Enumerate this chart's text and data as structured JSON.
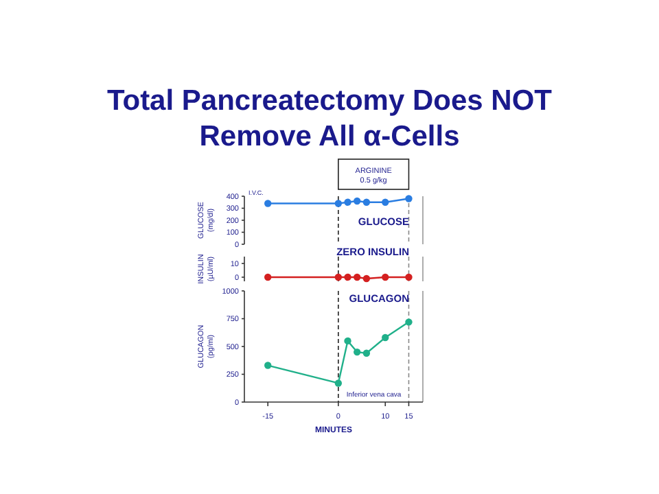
{
  "chart_data": [
    {
      "type": "line",
      "title": "Total Pancreatectomy Does NOT Remove All α-Cells",
      "ylabel": "GLUCOSE (mg/dl)",
      "x": [
        -15,
        0,
        2,
        4,
        6,
        10,
        15
      ],
      "xlim": [
        -20,
        18
      ],
      "ylim": [
        0,
        400
      ],
      "yticks": [
        0,
        100,
        200,
        300,
        400
      ],
      "tick_labels": "y",
      "marker": "circle",
      "line_style": "solid",
      "series": [
        {
          "color": "#2a7de1",
          "values": [
            340,
            340,
            350,
            360,
            350,
            350,
            380
          ]
        }
      ],
      "ref_lines": [
        {
          "axis": "x",
          "value": 0,
          "color": "#222222",
          "line_style": "dashed"
        },
        {
          "axis": "x",
          "value": 15,
          "color": "#888888",
          "line_style": "dashed"
        }
      ],
      "annotations": [
        "GLUCOSE",
        "I.V.C.",
        "ARGININE 0.5 g/kg"
      ]
    },
    {
      "type": "line",
      "ylabel": "INSULIN (µU/ml)",
      "x": [
        -15,
        0,
        2,
        4,
        6,
        10,
        15
      ],
      "xlim": [
        -20,
        18
      ],
      "ylim": [
        -3,
        15
      ],
      "yticks": [
        0,
        10
      ],
      "tick_labels": "y",
      "marker": "circle",
      "line_style": "solid",
      "series": [
        {
          "color": "#d42020",
          "values": [
            0,
            0,
            0,
            0,
            -1,
            0,
            0
          ]
        }
      ],
      "ref_lines": [
        {
          "axis": "x",
          "value": 0,
          "color": "#222222",
          "line_style": "dashed"
        },
        {
          "axis": "x",
          "value": 15,
          "color": "#888888",
          "line_style": "dashed"
        }
      ],
      "annotations": [
        "ZERO INSULIN"
      ]
    },
    {
      "type": "line",
      "ylabel": "GLUCAGON (pg/ml)",
      "xlabel": "MINUTES",
      "x": [
        -15,
        0,
        2,
        4,
        6,
        10,
        15
      ],
      "xlim": [
        -20,
        18
      ],
      "xticks": [
        -15,
        0,
        10,
        15
      ],
      "ylim": [
        0,
        1000
      ],
      "yticks": [
        0,
        250,
        500,
        750,
        1000
      ],
      "marker": "circle",
      "line_style": "solid",
      "series": [
        {
          "color": "#20b08a",
          "values": [
            330,
            170,
            550,
            450,
            440,
            580,
            720
          ]
        }
      ],
      "ref_lines": [
        {
          "axis": "x",
          "value": 0,
          "color": "#222222",
          "line_style": "dashed"
        },
        {
          "axis": "x",
          "value": 15,
          "color": "#888888",
          "line_style": "dashed"
        }
      ],
      "annotations": [
        "GLUCAGON",
        "Inferior vena cava"
      ]
    }
  ]
}
